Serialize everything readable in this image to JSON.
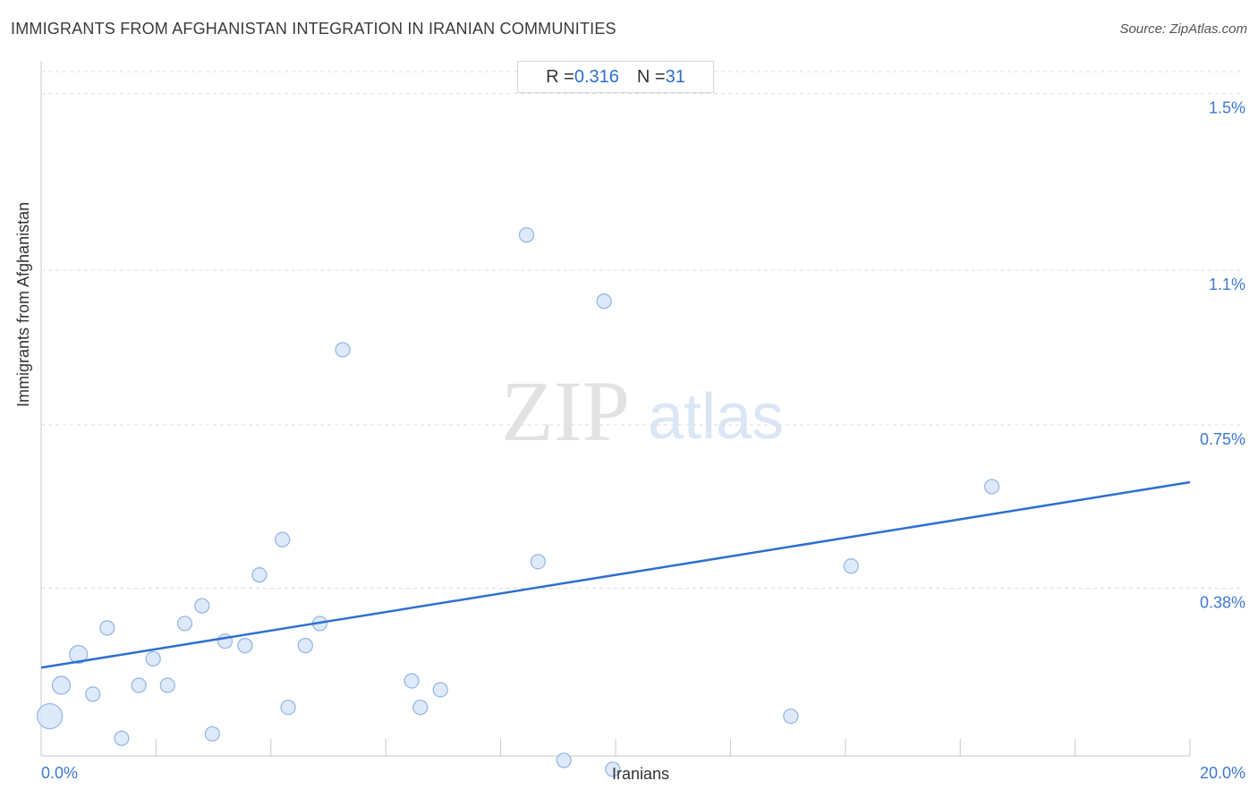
{
  "header": {
    "title": "IMMIGRANTS FROM AFGHANISTAN INTEGRATION IN IRANIAN COMMUNITIES",
    "source": "Source: ZipAtlas.com"
  },
  "stats": {
    "r_label": "R = ",
    "r_value": "0.316",
    "n_label": "N = ",
    "n_value": "31"
  },
  "watermark": {
    "zip": "ZIP",
    "atlas": "atlas"
  },
  "colors": {
    "accent": "#2f6fd0",
    "point_fill": "#d8e6f8",
    "point_stroke": "#8fb4e6",
    "grid": "#dcdcdc",
    "tick_label": "#3d79d1"
  },
  "chart_data": {
    "type": "scatter",
    "title": "IMMIGRANTS FROM AFGHANISTAN INTEGRATION IN IRANIAN COMMUNITIES",
    "xlabel": "Iranians",
    "ylabel": "Immigrants from Afghanistan",
    "xlim": [
      0,
      20
    ],
    "ylim": [
      0,
      1.55
    ],
    "x_tick_labels": [
      "0.0%",
      "20.0%"
    ],
    "y_ticks": [
      0.38,
      0.75,
      1.1,
      1.5
    ],
    "y_tick_labels": [
      "0.38%",
      "0.75%",
      "1.1%",
      "1.5%"
    ],
    "grid": "horizontal dashed",
    "trendline": {
      "x": [
        0,
        20
      ],
      "y": [
        0.2,
        0.62
      ]
    },
    "points": [
      {
        "x": 0.15,
        "y": 0.09,
        "size": 3
      },
      {
        "x": 0.35,
        "y": 0.16,
        "size": 2
      },
      {
        "x": 0.65,
        "y": 0.23,
        "size": 2
      },
      {
        "x": 0.9,
        "y": 0.14,
        "size": 1
      },
      {
        "x": 1.15,
        "y": 0.29,
        "size": 1
      },
      {
        "x": 1.4,
        "y": 0.04,
        "size": 1
      },
      {
        "x": 1.7,
        "y": 0.16,
        "size": 1
      },
      {
        "x": 1.95,
        "y": 0.22,
        "size": 1
      },
      {
        "x": 2.2,
        "y": 0.16,
        "size": 1
      },
      {
        "x": 2.5,
        "y": 0.3,
        "size": 1
      },
      {
        "x": 2.8,
        "y": 0.34,
        "size": 1
      },
      {
        "x": 2.98,
        "y": 0.05,
        "size": 1
      },
      {
        "x": 3.2,
        "y": 0.26,
        "size": 1
      },
      {
        "x": 3.55,
        "y": 0.25,
        "size": 1
      },
      {
        "x": 3.8,
        "y": 0.41,
        "size": 1
      },
      {
        "x": 4.2,
        "y": 0.49,
        "size": 1
      },
      {
        "x": 4.3,
        "y": 0.11,
        "size": 1
      },
      {
        "x": 4.6,
        "y": 0.25,
        "size": 1
      },
      {
        "x": 4.85,
        "y": 0.3,
        "size": 1
      },
      {
        "x": 5.25,
        "y": 0.92,
        "size": 1
      },
      {
        "x": 6.45,
        "y": 0.17,
        "size": 1
      },
      {
        "x": 6.6,
        "y": 0.11,
        "size": 1
      },
      {
        "x": 6.95,
        "y": 0.15,
        "size": 1
      },
      {
        "x": 8.45,
        "y": 1.18,
        "size": 1
      },
      {
        "x": 8.65,
        "y": 0.44,
        "size": 1
      },
      {
        "x": 9.1,
        "y": -0.01,
        "size": 1
      },
      {
        "x": 9.8,
        "y": 1.03,
        "size": 1
      },
      {
        "x": 9.95,
        "y": -0.03,
        "size": 1
      },
      {
        "x": 13.05,
        "y": 0.09,
        "size": 1
      },
      {
        "x": 14.1,
        "y": 0.43,
        "size": 1
      },
      {
        "x": 16.55,
        "y": 0.61,
        "size": 1
      }
    ]
  }
}
